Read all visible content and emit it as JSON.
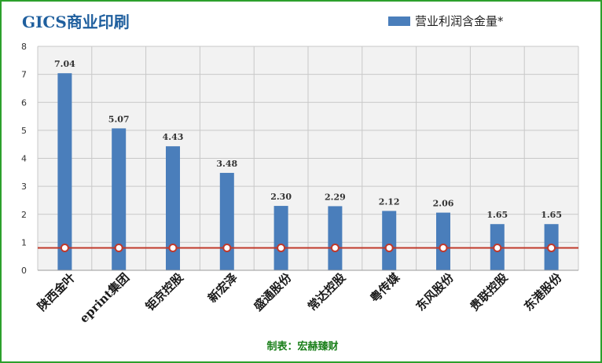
{
  "chart_data": {
    "type": "bar",
    "title": "GICS商业印刷",
    "categories": [
      "陕西金叶",
      "eprint集团",
      "钜京控股",
      "新宏泽",
      "盛通股份",
      "常达控股",
      "粤传媒",
      "东风股份",
      "贵联控股",
      "东港股份"
    ],
    "series": [
      {
        "name": "营业利润含金量*",
        "values": [
          7.04,
          5.07,
          4.43,
          3.48,
          2.3,
          2.29,
          2.12,
          2.06,
          1.65,
          1.65
        ],
        "color": "#4a7ebb"
      },
      {
        "values": [
          0.8,
          0.8,
          0.8,
          0.8,
          0.8,
          0.8,
          0.8,
          0.8,
          0.8,
          0.8
        ],
        "color": "#c0392b"
      }
    ],
    "value_labels": [
      "7.04",
      "5.07",
      "4.43",
      "3.48",
      "2.30",
      "2.29",
      "2.12",
      "2.06",
      "1.65",
      "1.65"
    ],
    "y_ticks": [
      "0",
      "1",
      "2",
      "3",
      "4",
      "5",
      "6",
      "7",
      "8"
    ],
    "ylim": [
      0,
      8
    ],
    "xlabel": "",
    "ylabel": "",
    "grid": true,
    "legend_position": "top-right"
  },
  "footer": "制表：宏赫臻财"
}
